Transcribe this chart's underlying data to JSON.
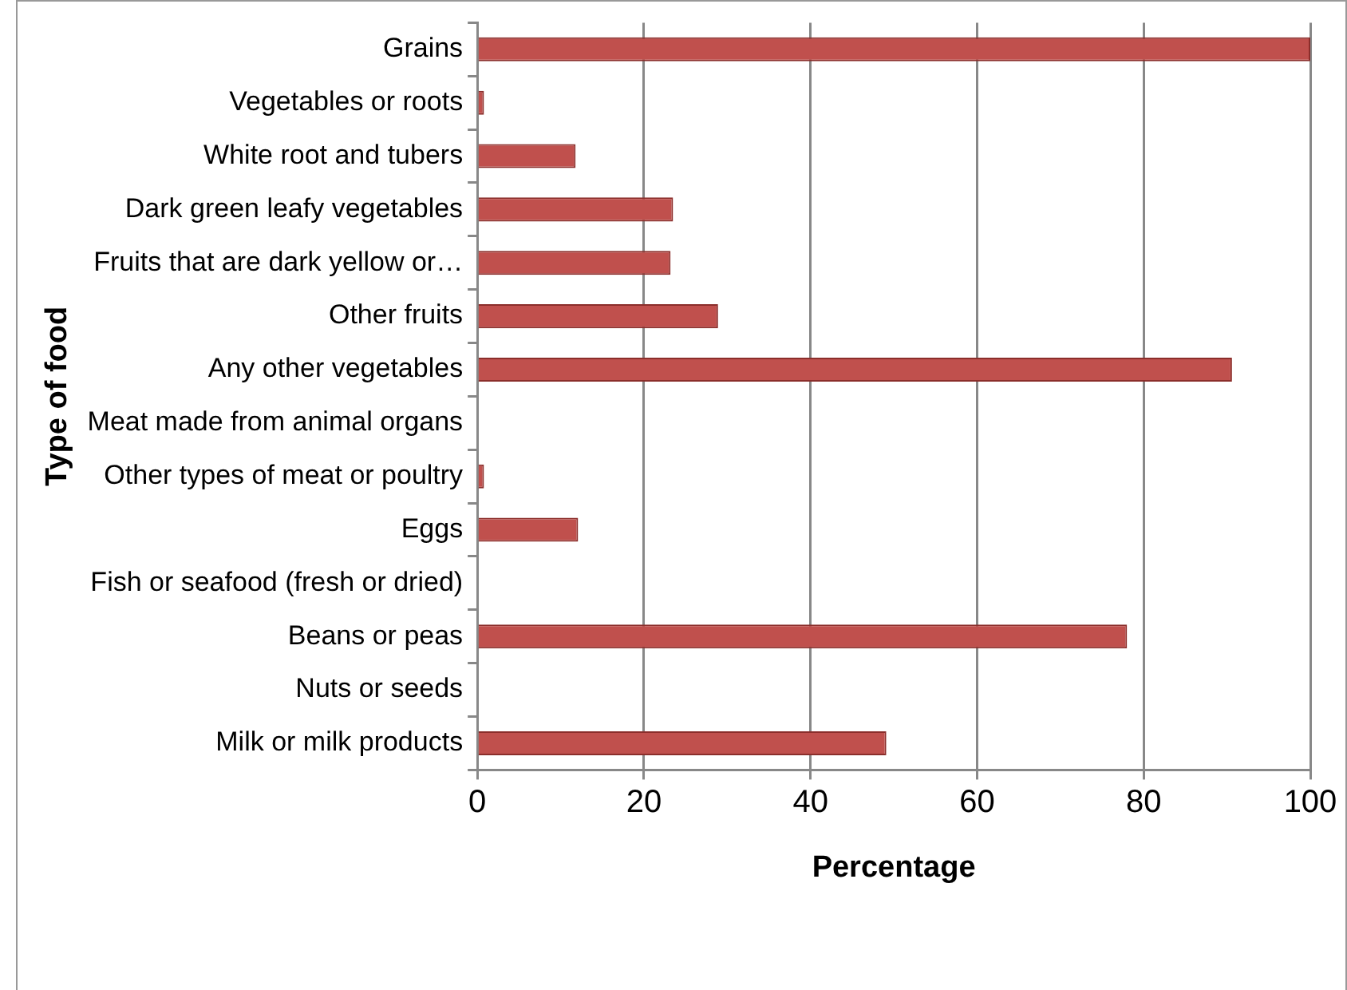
{
  "chart_data": {
    "type": "bar",
    "orientation": "horizontal",
    "xlabel": "Percentage",
    "ylabel": "Type of food",
    "categories": [
      "Grains",
      "Vegetables or roots",
      "White root and tubers",
      "Dark green leafy vegetables",
      "Fruits that are dark yellow or…",
      "Other fruits",
      "Any other vegetables",
      "Meat made from animal organs",
      "Other types of meat or poultry",
      "Eggs",
      "Fish or seafood (fresh or dried)",
      "Beans or peas",
      "Nuts or seeds",
      "Milk or milk products"
    ],
    "values": [
      100,
      0.8,
      11.8,
      23.5,
      23.2,
      28.9,
      90.6,
      0,
      0.8,
      12.1,
      0,
      78.0,
      0,
      49.1
    ],
    "color": "#c0504d",
    "xlim": [
      0,
      100
    ],
    "xticks": [
      0,
      20,
      40,
      60,
      80,
      100
    ],
    "grid": "x",
    "legend": false
  }
}
